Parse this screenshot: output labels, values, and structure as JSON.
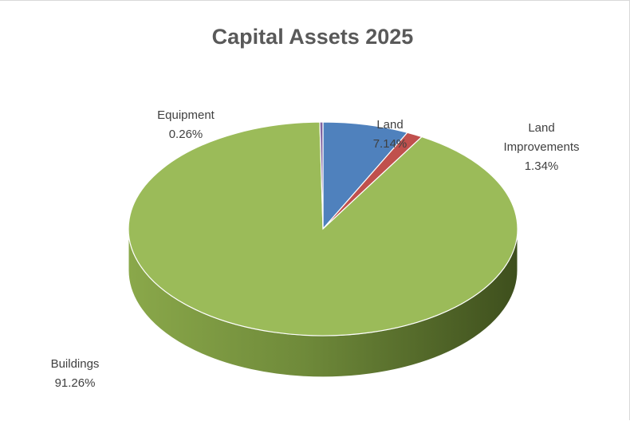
{
  "chart_data": {
    "type": "pie",
    "title": "Capital Assets 2025",
    "slices": [
      {
        "key": "land",
        "label": "Land",
        "value": 7.14,
        "value_label": "7.14%",
        "color": "#4f81bd"
      },
      {
        "key": "land-improvements",
        "label_lines": [
          "Land",
          "Improvements"
        ],
        "value": 1.34,
        "value_label": "1.34%",
        "color": "#c0504d"
      },
      {
        "key": "buildings",
        "label": "Buildings",
        "value": 91.26,
        "value_label": "91.26%",
        "color": "#9bbb59"
      },
      {
        "key": "equipment",
        "label": "Equipment",
        "value": 0.26,
        "value_label": "0.26%",
        "color": "#8064a2"
      }
    ],
    "three_d": true,
    "legend": "none"
  }
}
